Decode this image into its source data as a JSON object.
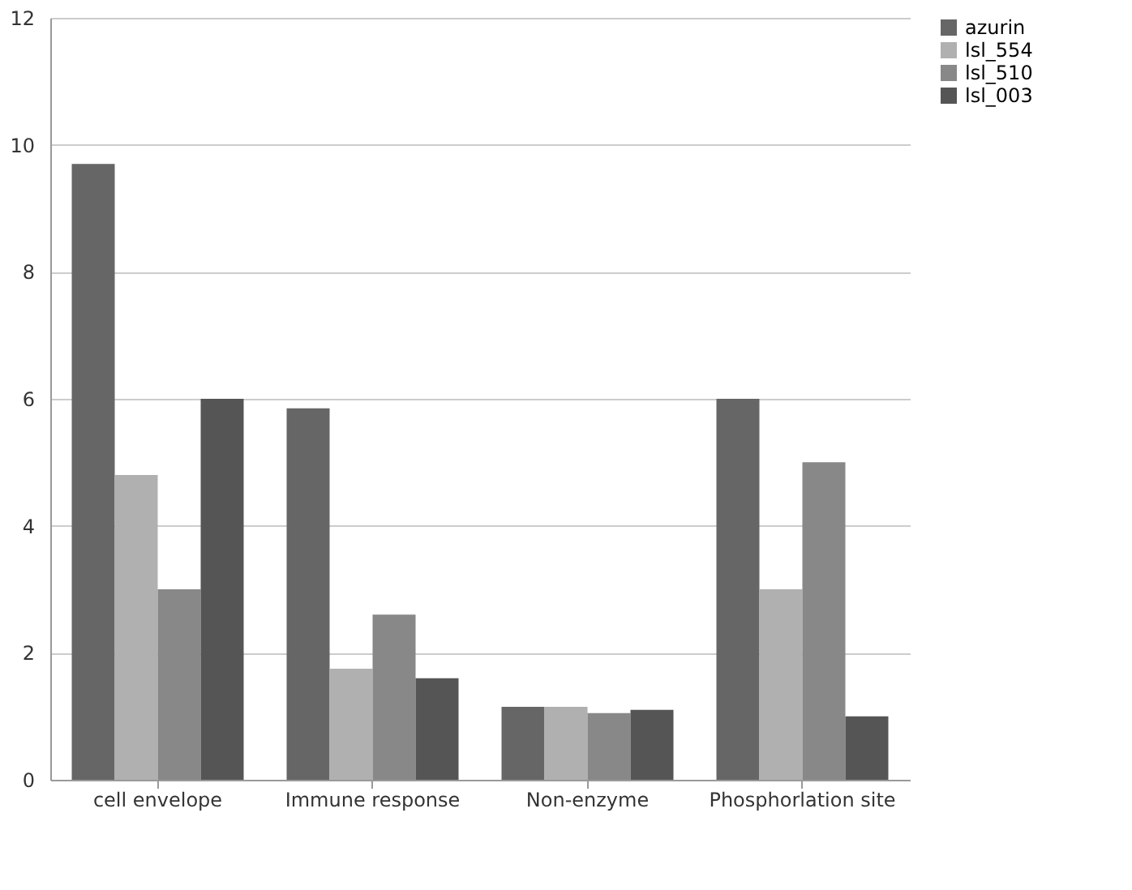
{
  "chart_data": {
    "type": "bar",
    "categories": [
      "cell envelope",
      "Immune response",
      "Non-enzyme",
      "Phosphorlation site"
    ],
    "series": [
      {
        "name": "azurin",
        "color": "#666666",
        "values": [
          9.7,
          5.85,
          1.15,
          6.0
        ]
      },
      {
        "name": "lsl_554",
        "color": "#b0b0b0",
        "values": [
          4.8,
          1.75,
          1.15,
          3.0
        ]
      },
      {
        "name": "lsl_510",
        "color": "#888888",
        "values": [
          3.0,
          2.6,
          1.05,
          5.0
        ]
      },
      {
        "name": "lsl_003",
        "color": "#555555",
        "values": [
          6.0,
          1.6,
          1.1,
          1.0
        ]
      }
    ],
    "ylim": [
      0,
      12
    ],
    "yticks": [
      0,
      2,
      4,
      6,
      8,
      10,
      12
    ],
    "grid": "y",
    "legend": "right"
  }
}
